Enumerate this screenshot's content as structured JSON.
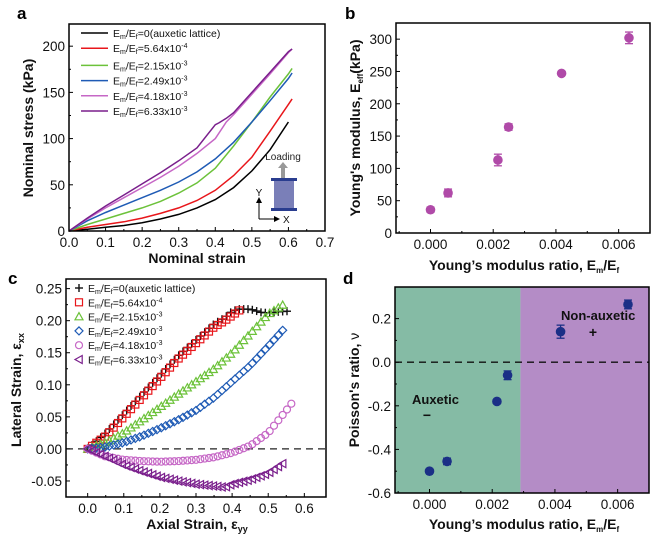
{
  "chart_data": [
    {
      "panel": "a",
      "type": "line",
      "xlabel": "Nominal strain",
      "ylabel": "Nominal stress (kPa)",
      "xlim": [
        0,
        0.7
      ],
      "ylim": [
        0,
        224
      ],
      "xticks": [
        "0.0",
        "0.1",
        "0.2",
        "0.3",
        "0.4",
        "0.5",
        "0.6",
        "0.7"
      ],
      "yticks": [
        "0",
        "50",
        "100",
        "150",
        "200"
      ],
      "legend_position": "top-left",
      "inset": {
        "label": "Loading",
        "axis_y": "Y",
        "axis_x": "X"
      },
      "series": [
        {
          "name": "Em/Ef=0(auxetic lattice)",
          "color": "#000000",
          "x": [
            0,
            0.05,
            0.1,
            0.15,
            0.2,
            0.25,
            0.3,
            0.35,
            0.4,
            0.45,
            0.5,
            0.55,
            0.6
          ],
          "y": [
            0,
            2,
            4,
            6,
            9,
            13,
            18,
            25,
            34,
            47,
            65,
            88,
            118
          ]
        },
        {
          "name": "Em/Ef=5.64x10-4",
          "color": "#e8161b",
          "x": [
            0,
            0.05,
            0.1,
            0.15,
            0.2,
            0.25,
            0.3,
            0.35,
            0.4,
            0.45,
            0.5,
            0.55,
            0.6,
            0.61
          ],
          "y": [
            0,
            4,
            7,
            10,
            14,
            19,
            25,
            33,
            44,
            60,
            80,
            108,
            137,
            143
          ]
        },
        {
          "name": "Em/Ef=2.15x10-3",
          "color": "#6cc23a",
          "x": [
            0,
            0.05,
            0.1,
            0.15,
            0.2,
            0.25,
            0.3,
            0.35,
            0.4,
            0.45,
            0.5,
            0.55,
            0.6,
            0.61
          ],
          "y": [
            0,
            7,
            13,
            19,
            25,
            32,
            41,
            52,
            68,
            92,
            118,
            145,
            170,
            176
          ]
        },
        {
          "name": "Em/Ef=2.49x10-3",
          "color": "#1f5bb5",
          "x": [
            0,
            0.05,
            0.1,
            0.15,
            0.2,
            0.25,
            0.3,
            0.35,
            0.4,
            0.45,
            0.5,
            0.55,
            0.6,
            0.61
          ],
          "y": [
            0,
            11,
            20,
            28,
            36,
            44,
            53,
            64,
            78,
            96,
            118,
            141,
            165,
            171
          ]
        },
        {
          "name": "Em/Ef=4.18x10-3",
          "color": "#c667c6",
          "x": [
            0,
            0.05,
            0.1,
            0.15,
            0.2,
            0.25,
            0.3,
            0.35,
            0.4,
            0.43,
            0.45,
            0.5,
            0.55,
            0.6,
            0.61
          ],
          "y": [
            0,
            13,
            25,
            36,
            47,
            58,
            70,
            84,
            100,
            118,
            126,
            148,
            170,
            193,
            197
          ]
        },
        {
          "name": "Em/Ef=6.33x10-3",
          "color": "#7a1f8c",
          "x": [
            0,
            0.05,
            0.1,
            0.15,
            0.2,
            0.25,
            0.3,
            0.35,
            0.4,
            0.41,
            0.43,
            0.45,
            0.5,
            0.55,
            0.6,
            0.61
          ],
          "y": [
            0,
            14,
            27,
            39,
            51,
            63,
            76,
            90,
            115,
            117,
            122,
            128,
            150,
            172,
            194,
            197
          ]
        }
      ]
    },
    {
      "panel": "b",
      "type": "scatter",
      "xlabel": "Young's modulus ratio, Em/Ef",
      "ylabel": "Young's modulus, Eeff (kPa)",
      "xlim": [
        -0.0011,
        0.007
      ],
      "ylim": [
        0,
        325
      ],
      "xticks": [
        "0.000",
        "0.002",
        "0.004",
        "0.006"
      ],
      "yticks": [
        "0",
        "50",
        "100",
        "150",
        "200",
        "250",
        "300"
      ],
      "marker_color": "#b04aa8",
      "x": [
        0,
        0.00056,
        0.00215,
        0.00249,
        0.00418,
        0.00633
      ],
      "y": [
        36,
        62,
        113,
        164,
        247,
        302
      ],
      "yerr": [
        4,
        6,
        9,
        5,
        3,
        9
      ]
    },
    {
      "panel": "c",
      "type": "scatter",
      "xlabel": "Axial Strain, εyy",
      "ylabel": "Lateral Strain, εxx",
      "xlim": [
        -0.06,
        0.66
      ],
      "ylim": [
        -0.075,
        0.265
      ],
      "xticks": [
        "0.0",
        "0.1",
        "0.2",
        "0.3",
        "0.4",
        "0.5",
        "0.6"
      ],
      "yticks": [
        "-0.05",
        "0.00",
        "0.05",
        "0.10",
        "0.15",
        "0.20",
        "0.25"
      ],
      "reference_line": 0,
      "legend_position": "top-left",
      "series": [
        {
          "name": "Em/Ef=0(auxetic lattice)",
          "marker": "plus",
          "color": "#111111",
          "x": [
            0,
            0.05,
            0.1,
            0.15,
            0.2,
            0.25,
            0.3,
            0.35,
            0.38,
            0.4,
            0.42,
            0.45,
            0.48,
            0.5,
            0.53,
            0.56
          ],
          "y": [
            0,
            0.025,
            0.055,
            0.085,
            0.115,
            0.145,
            0.17,
            0.195,
            0.205,
            0.215,
            0.218,
            0.218,
            0.213,
            0.212,
            0.214,
            0.215
          ]
        },
        {
          "name": "Em/Ef=5.64x10-4",
          "marker": "square",
          "color": "#e8161b",
          "x": [
            0,
            0.05,
            0.1,
            0.15,
            0.2,
            0.25,
            0.3,
            0.35,
            0.38,
            0.4,
            0.43
          ],
          "y": [
            0,
            0.02,
            0.05,
            0.08,
            0.11,
            0.14,
            0.165,
            0.19,
            0.2,
            0.208,
            0.22
          ]
        },
        {
          "name": "Em/Ef=2.15x10-3",
          "marker": "triangle-up",
          "color": "#6cc23a",
          "x": [
            0,
            0.05,
            0.1,
            0.15,
            0.2,
            0.25,
            0.3,
            0.35,
            0.4,
            0.45,
            0.5,
            0.55
          ],
          "y": [
            0,
            0.01,
            0.025,
            0.045,
            0.065,
            0.085,
            0.105,
            0.125,
            0.15,
            0.18,
            0.21,
            0.228
          ]
        },
        {
          "name": "Em/Ef=2.49x10-3",
          "marker": "diamond",
          "color": "#1f5bb5",
          "x": [
            0,
            0.05,
            0.1,
            0.15,
            0.2,
            0.25,
            0.3,
            0.35,
            0.4,
            0.45,
            0.5,
            0.54
          ],
          "y": [
            0,
            0.003,
            0.01,
            0.02,
            0.032,
            0.045,
            0.06,
            0.08,
            0.105,
            0.13,
            0.16,
            0.185
          ]
        },
        {
          "name": "Em/Ef=4.18x10-3",
          "marker": "circle",
          "color": "#c667c6",
          "x": [
            0,
            0.05,
            0.1,
            0.15,
            0.2,
            0.25,
            0.3,
            0.35,
            0.4,
            0.45,
            0.5,
            0.55,
            0.57
          ],
          "y": [
            0,
            -0.012,
            -0.017,
            -0.019,
            -0.02,
            -0.019,
            -0.017,
            -0.013,
            -0.006,
            0.005,
            0.025,
            0.06,
            0.075
          ]
        },
        {
          "name": "Em/Ef=6.33x10-3",
          "marker": "triangle-left",
          "color": "#7a1f8c",
          "x": [
            0,
            0.05,
            0.1,
            0.15,
            0.2,
            0.25,
            0.3,
            0.35,
            0.38,
            0.4,
            0.45,
            0.5,
            0.54
          ],
          "y": [
            0,
            -0.012,
            -0.025,
            -0.035,
            -0.044,
            -0.05,
            -0.055,
            -0.058,
            -0.06,
            -0.055,
            -0.048,
            -0.038,
            -0.023
          ]
        }
      ]
    },
    {
      "panel": "d",
      "type": "scatter",
      "xlabel": "Young's modulus ratio, Em/Ef",
      "ylabel": "Poisson's ratio, ν",
      "xlim": [
        -0.0011,
        0.007
      ],
      "ylim": [
        -0.6,
        0.345
      ],
      "xticks": [
        "0.000",
        "0.002",
        "0.004",
        "0.006"
      ],
      "yticks": [
        "-0.6",
        "-0.4",
        "-0.2",
        "0.0",
        "0.2"
      ],
      "reference_line": 0,
      "regions": [
        {
          "label": "Auxetic",
          "symbol": "−",
          "x_range": [
            -0.0011,
            0.0029
          ],
          "color": "#85bba5"
        },
        {
          "label": "Non-auxetic",
          "symbol": "+",
          "x_range": [
            0.0029,
            0.007
          ],
          "color": "#b48cc6"
        }
      ],
      "marker_color": "#1b2f86",
      "x": [
        0,
        0.00056,
        0.00215,
        0.00249,
        0.00418,
        0.00633
      ],
      "y": [
        -0.5,
        -0.455,
        -0.18,
        -0.06,
        0.14,
        0.265
      ],
      "yerr": [
        0.01,
        0.015,
        0.008,
        0.02,
        0.03,
        0.02
      ]
    }
  ],
  "labels": {
    "panel_a": "a",
    "panel_b": "b",
    "panel_c": "c",
    "panel_d": "d",
    "legend_prefix_a": "E",
    "leg": [
      {
        "main": "Em/Ef=0(auxetic lattice)",
        "pre": "=0(auxetic lattice)",
        "exp": ""
      },
      {
        "main": "Em/Ef=5.64x10",
        "pre": "=5.64x10",
        "exp": "-4"
      },
      {
        "main": "Em/Ef=2.15x10",
        "pre": "=2.15x10",
        "exp": "-3"
      },
      {
        "main": "Em/Ef=2.49x10",
        "pre": "=2.49x10",
        "exp": "-3"
      },
      {
        "main": "Em/Ef=4.18x10",
        "pre": "=4.18x10",
        "exp": "-3"
      },
      {
        "main": "Em/Ef=6.33x10",
        "pre": "=6.33x10",
        "exp": "-3"
      }
    ],
    "a_xlabel": "Nominal strain",
    "a_ylabel": "Nominal stress (kPa)",
    "a_loading": "Loading",
    "a_axis_y": "Y",
    "a_axis_x": "X",
    "b_ylabel_pre": "Young's modulus, E",
    "b_ylabel_sub": "eff",
    "b_ylabel_post": "(kPa)",
    "bd_xlabel_pre": "Young’s modulus ratio, E",
    "bd_xlabel_sub1": "m",
    "bd_xlabel_mid": "/E",
    "bd_xlabel_sub2": "f",
    "c_xlabel_pre": "Axial Strain, ε",
    "c_xlabel_sub": "yy",
    "c_ylabel_pre": "Lateral Strain, ε",
    "c_ylabel_sub": "xx",
    "d_ylabel": "Poisson's ratio, ",
    "d_ylabel_nu": "ν",
    "d_auxetic": "Auxetic",
    "d_auxetic_sym": "−",
    "d_nonauxetic": "Non-auxetic",
    "d_nonauxetic_sym": "+"
  }
}
